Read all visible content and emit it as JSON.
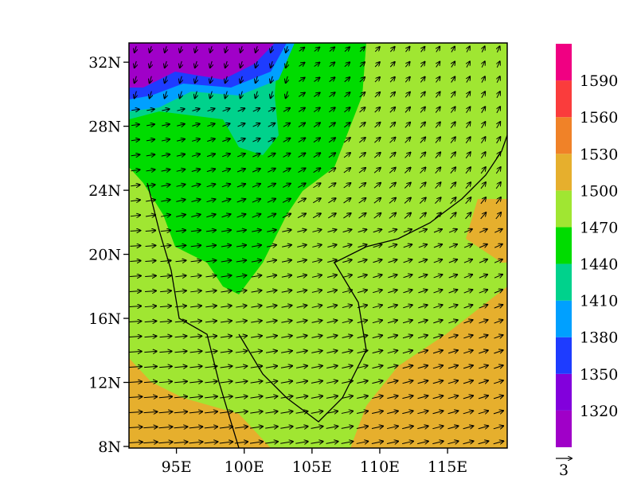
{
  "map": {
    "xticks": [
      {
        "value": 95,
        "label": "95E"
      },
      {
        "value": 100,
        "label": "100E"
      },
      {
        "value": 105,
        "label": "105E"
      },
      {
        "value": 110,
        "label": "110E"
      },
      {
        "value": 115,
        "label": "115E"
      }
    ],
    "yticks": [
      {
        "value": 8,
        "label": "8N"
      },
      {
        "value": 12,
        "label": "12N"
      },
      {
        "value": 16,
        "label": "16N"
      },
      {
        "value": 20,
        "label": "20N"
      },
      {
        "value": 24,
        "label": "24N"
      },
      {
        "value": 28,
        "label": "28N"
      },
      {
        "value": 32,
        "label": "32N"
      }
    ],
    "xlim": [
      91.5,
      119.4
    ],
    "ylim": [
      7.9,
      33.2
    ],
    "colorbar": {
      "levels": [
        1320,
        1350,
        1380,
        1410,
        1440,
        1470,
        1500,
        1530,
        1560,
        1590
      ],
      "colors": [
        "#a000c8",
        "#8200dc",
        "#1e3cff",
        "#00a0ff",
        "#00d28c",
        "#00dc00",
        "#a0e632",
        "#e6af2d",
        "#f08228",
        "#fa3c3c",
        "#f00082"
      ]
    },
    "reference_vector": {
      "value": 3,
      "label": "3"
    }
  }
}
